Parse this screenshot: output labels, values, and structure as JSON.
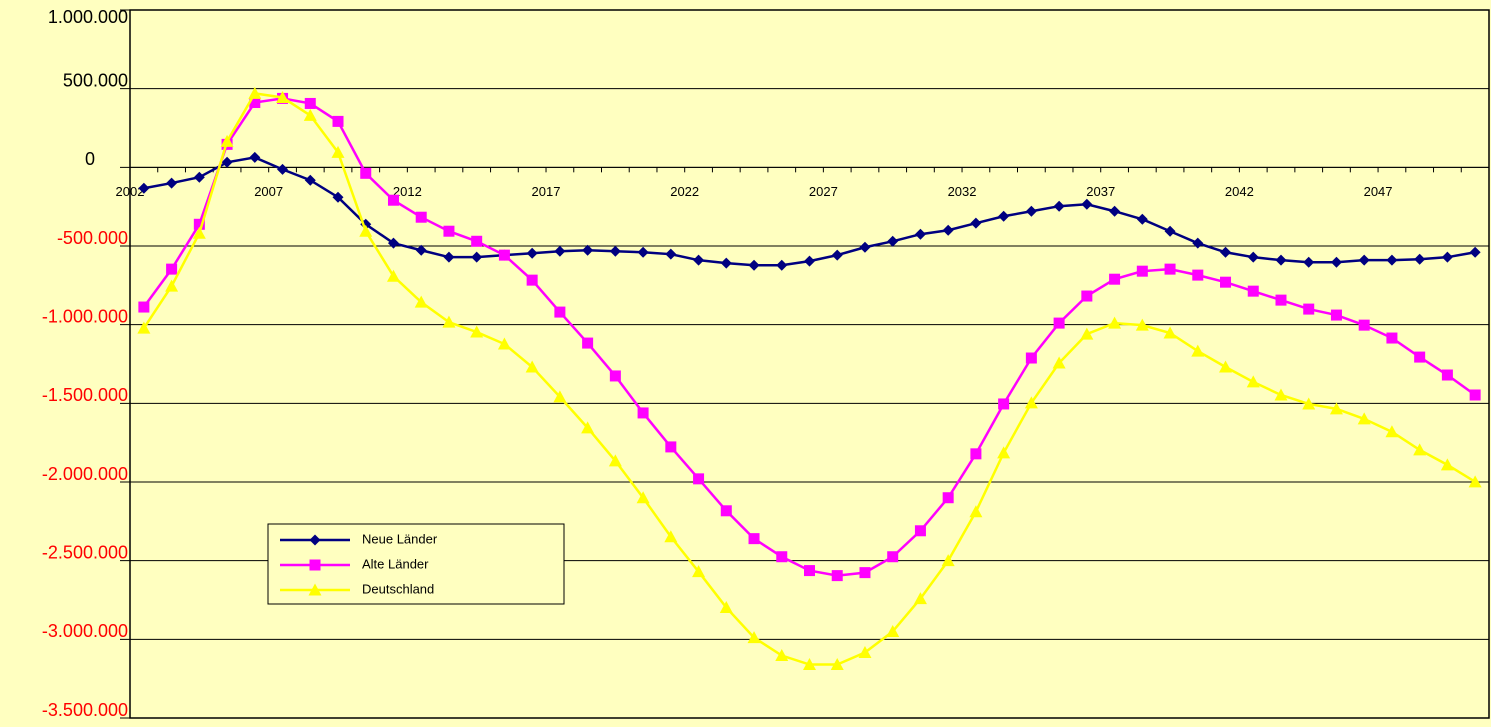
{
  "chart_data": {
    "type": "line",
    "categories": [
      "2002",
      null,
      null,
      null,
      null,
      "2007",
      null,
      null,
      null,
      null,
      "2012",
      null,
      null,
      null,
      null,
      "2017",
      null,
      null,
      null,
      null,
      "2022",
      null,
      null,
      null,
      null,
      "2027",
      null,
      null,
      null,
      null,
      "2032",
      null,
      null,
      null,
      null,
      "2037",
      null,
      null,
      null,
      null,
      "2042",
      null,
      null,
      null,
      null,
      "2047",
      null,
      null,
      null
    ],
    "series": [
      {
        "name": "Neue Länder",
        "color": "#000080",
        "marker": "diamond",
        "values": [
          -133000,
          -100000,
          -63000,
          32000,
          63000,
          -13000,
          -82000,
          -190000,
          -362000,
          -482000,
          -527000,
          -571000,
          -571000,
          -558000,
          -546000,
          -533000,
          -527000,
          -533000,
          -540000,
          -552000,
          -590000,
          -609000,
          -622000,
          -622000,
          -596000,
          -558000,
          -508000,
          -470000,
          -425000,
          -400000,
          -355000,
          -311000,
          -279000,
          -247000,
          -235000,
          -279000,
          -330000,
          -406000,
          -482000,
          -540000,
          -571000,
          -590000,
          -603000,
          -603000,
          -590000,
          -590000,
          -584000,
          -571000,
          -540000
        ]
      },
      {
        "name": "Alte Länder",
        "color": "#ff00ff",
        "marker": "square",
        "values": [
          -888000,
          -647000,
          -362000,
          146000,
          412000,
          438000,
          406000,
          292000,
          -38000,
          -209000,
          -317000,
          -406000,
          -470000,
          -558000,
          -717000,
          -920000,
          -1117000,
          -1326000,
          -1561000,
          -1777000,
          -1980000,
          -2183000,
          -2360000,
          -2475000,
          -2563000,
          -2595000,
          -2576000,
          -2475000,
          -2310000,
          -2100000,
          -1821000,
          -1504000,
          -1212000,
          -990000,
          -818000,
          -711000,
          -660000,
          -647000,
          -685000,
          -730000,
          -787000,
          -844000,
          -901000,
          -939000,
          -1003000,
          -1085000,
          -1206000,
          -1320000,
          -1447000
        ]
      },
      {
        "name": "Deutschland",
        "color": "#ffff00",
        "marker": "triangle",
        "values": [
          -1022000,
          -755000,
          -419000,
          165000,
          470000,
          444000,
          330000,
          95000,
          -406000,
          -692000,
          -857000,
          -984000,
          -1047000,
          -1123000,
          -1269000,
          -1459000,
          -1656000,
          -1866000,
          -2100000,
          -2348000,
          -2570000,
          -2798000,
          -2989000,
          -3103000,
          -3160000,
          -3160000,
          -3084000,
          -2950000,
          -2741000,
          -2500000,
          -2189000,
          -1815000,
          -1497000,
          -1244000,
          -1060000,
          -990000,
          -1003000,
          -1053000,
          -1168000,
          -1269000,
          -1364000,
          -1447000,
          -1504000,
          -1535000,
          -1599000,
          -1681000,
          -1796000,
          -1891000,
          -1999000
        ]
      }
    ],
    "ylim": [
      -3500000,
      1000000
    ],
    "yticks": [
      {
        "value": -3500000,
        "label": "-3.500.000"
      },
      {
        "value": -3000000,
        "label": "-3.000.000"
      },
      {
        "value": -2500000,
        "label": "-2.500.000"
      },
      {
        "value": -2000000,
        "label": "-2.000.000"
      },
      {
        "value": -1500000,
        "label": "-1.500.000"
      },
      {
        "value": -1000000,
        "label": "-1.000.000"
      },
      {
        "value": -500000,
        "label": "-500.000"
      },
      0,
      {
        "value": 500000,
        "label": "500.000"
      },
      {
        "value": 1000000,
        "label": "1.000.000"
      }
    ],
    "grid": true,
    "background": "#ffffc0",
    "negative_tick_color": "#ff0000",
    "legend": "lower left"
  }
}
